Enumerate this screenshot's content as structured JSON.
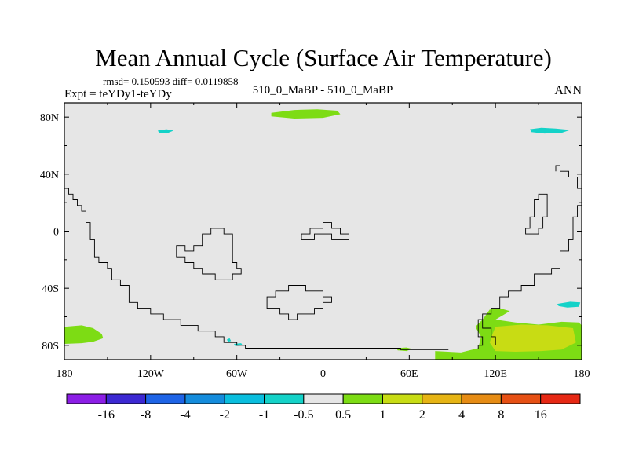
{
  "chart_data": {
    "type": "heatmap",
    "title": "Mean Annual Cycle (Surface Air Temperature)",
    "stats": "rmsd= 0.150593 diff= 0.0119858",
    "experiment": "Expt = teYDy1-teYDy",
    "subtitle": "510_0_MaBP - 510_0_MaBP",
    "season": "ANN",
    "xlim": [
      -180,
      180
    ],
    "ylim": [
      -90,
      90
    ],
    "x_ticks": [
      {
        "value": -180,
        "label": "180"
      },
      {
        "value": -120,
        "label": "120W"
      },
      {
        "value": -60,
        "label": "60W"
      },
      {
        "value": 0,
        "label": "0"
      },
      {
        "value": 60,
        "label": "60E"
      },
      {
        "value": 120,
        "label": "120E"
      },
      {
        "value": 180,
        "label": "180"
      }
    ],
    "y_ticks": [
      {
        "value": 80,
        "label": "80N"
      },
      {
        "value": 40,
        "label": "40N"
      },
      {
        "value": 0,
        "label": "0"
      },
      {
        "value": -40,
        "label": "40S"
      },
      {
        "value": -80,
        "label": "80S"
      }
    ],
    "background_class": "-0.5 to 0.5",
    "colorbar": {
      "colors": [
        "#8c1ee6",
        "#3c28d2",
        "#1e64e6",
        "#148cdc",
        "#0abede",
        "#14d2c8",
        "#e6e6e6",
        "#7ddc14",
        "#c8dc14",
        "#e6b414",
        "#e68c14",
        "#e65014",
        "#e62814"
      ],
      "labels": [
        "-16",
        "-8",
        "-4",
        "-2",
        "-1",
        "-0.5",
        "0.5",
        "1",
        "2",
        "4",
        "8",
        "16"
      ]
    },
    "regions": [
      {
        "level": "1",
        "color": "#7ddc14",
        "points": [
          [
            -36,
            83
          ],
          [
            -20,
            85
          ],
          [
            -4,
            85.5
          ],
          [
            10,
            84.5
          ],
          [
            12,
            82
          ],
          [
            0,
            79.5
          ],
          [
            -20,
            79
          ],
          [
            -36,
            80.5
          ]
        ]
      },
      {
        "level": "-1",
        "color": "#14d2c8",
        "points": [
          [
            -115,
            70.5
          ],
          [
            -109,
            71.5
          ],
          [
            -104,
            70.5
          ],
          [
            -109,
            68.5
          ],
          [
            -114,
            69
          ]
        ]
      },
      {
        "level": "-1",
        "color": "#14d2c8",
        "points": [
          [
            144,
            71.5
          ],
          [
            152,
            72.5
          ],
          [
            162,
            72
          ],
          [
            172,
            71
          ],
          [
            166,
            69
          ],
          [
            154,
            68.5
          ],
          [
            145,
            69.5
          ]
        ]
      },
      {
        "level": "-1",
        "color": "#14d2c8",
        "points": [
          [
            163,
            -51
          ],
          [
            172,
            -49.5
          ],
          [
            179,
            -50
          ],
          [
            178,
            -53
          ],
          [
            170,
            -53.5
          ],
          [
            164,
            -52.5
          ]
        ]
      },
      {
        "level": "-1",
        "color": "#14d2c8",
        "points": [
          [
            -67,
            -76
          ],
          [
            -65,
            -75
          ],
          [
            -64,
            -77
          ],
          [
            -66,
            -77.5
          ]
        ]
      },
      {
        "level": "-1",
        "color": "#14d2c8",
        "points": [
          [
            -62,
            -79
          ],
          [
            -57,
            -78.5
          ],
          [
            -56,
            -80
          ],
          [
            -61,
            -80.5
          ]
        ]
      },
      {
        "level": "1",
        "color": "#7ddc14",
        "points": [
          [
            -180,
            -67
          ],
          [
            -168,
            -66
          ],
          [
            -160,
            -68
          ],
          [
            -154,
            -72
          ],
          [
            -153,
            -75
          ],
          [
            -160,
            -77.5
          ],
          [
            -168,
            -78.5
          ],
          [
            -180,
            -79
          ]
        ]
      },
      {
        "level": "1",
        "color": "#7ddc14",
        "points": [
          [
            51,
            -82
          ],
          [
            58,
            -81.5
          ],
          [
            62,
            -82.5
          ],
          [
            58,
            -84
          ],
          [
            52,
            -83.5
          ]
        ]
      },
      {
        "level": "1",
        "color": "#7ddc14",
        "points": [
          [
            111,
            -62
          ],
          [
            116,
            -55
          ],
          [
            123,
            -54
          ],
          [
            130,
            -56
          ],
          [
            120,
            -62
          ],
          [
            134,
            -64
          ],
          [
            150,
            -65.5
          ],
          [
            166,
            -63.5
          ],
          [
            178,
            -64
          ],
          [
            180,
            -66
          ],
          [
            180,
            -90
          ],
          [
            78,
            -90
          ],
          [
            78,
            -84
          ],
          [
            96,
            -85
          ],
          [
            108,
            -82
          ],
          [
            110,
            -74
          ],
          [
            106,
            -67
          ]
        ]
      },
      {
        "level": "2",
        "color": "#c8dc14",
        "points": [
          [
            120,
            -67
          ],
          [
            138,
            -65.5
          ],
          [
            156,
            -66
          ],
          [
            174,
            -68
          ],
          [
            176,
            -78
          ],
          [
            166,
            -83
          ],
          [
            152,
            -84
          ],
          [
            134,
            -84.5
          ],
          [
            120,
            -84
          ],
          [
            116,
            -78
          ],
          [
            118,
            -72
          ]
        ]
      }
    ],
    "coastlines": [
      {
        "name": "western-margin",
        "closed": false,
        "points": [
          [
            -180,
            30
          ],
          [
            -177,
            30
          ],
          [
            -177,
            26
          ],
          [
            -174,
            26
          ],
          [
            -174,
            22
          ],
          [
            -171,
            22
          ],
          [
            -171,
            18
          ],
          [
            -168,
            18
          ],
          [
            -168,
            14
          ],
          [
            -165,
            14
          ],
          [
            -165,
            6
          ],
          [
            -162,
            6
          ],
          [
            -162,
            -6
          ],
          [
            -159,
            -6
          ],
          [
            -159,
            -18
          ],
          [
            -156,
            -18
          ],
          [
            -156,
            -22
          ],
          [
            -150,
            -22
          ],
          [
            -150,
            -26
          ],
          [
            -147,
            -26
          ],
          [
            -147,
            -34
          ],
          [
            -141,
            -34
          ],
          [
            -141,
            -38
          ],
          [
            -135,
            -38
          ],
          [
            -135,
            -50
          ],
          [
            -129,
            -50
          ],
          [
            -129,
            -54
          ],
          [
            -120,
            -54
          ],
          [
            -120,
            -58
          ],
          [
            -111,
            -58
          ],
          [
            -111,
            -62
          ],
          [
            -99,
            -62
          ],
          [
            -99,
            -66
          ],
          [
            -87,
            -66
          ],
          [
            -87,
            -70
          ],
          [
            -75,
            -70
          ],
          [
            -75,
            -74
          ],
          [
            -69,
            -74
          ],
          [
            -69,
            -78
          ],
          [
            -60,
            -78
          ],
          [
            -60,
            -80
          ],
          [
            -54,
            -80
          ],
          [
            -54,
            -82
          ],
          [
            54,
            -82
          ],
          [
            54,
            -83
          ],
          [
            87,
            -83
          ],
          [
            87,
            -82.5
          ],
          [
            108,
            -82.5
          ],
          [
            108,
            -80
          ],
          [
            111,
            -80
          ],
          [
            111,
            -74
          ],
          [
            108,
            -74
          ],
          [
            108,
            -62
          ],
          [
            111,
            -62
          ],
          [
            111,
            -58
          ],
          [
            117,
            -58
          ],
          [
            117,
            -54
          ],
          [
            123,
            -54
          ],
          [
            123,
            -46
          ],
          [
            129,
            -46
          ],
          [
            129,
            -42
          ],
          [
            138,
            -42
          ],
          [
            138,
            -38
          ],
          [
            147,
            -38
          ],
          [
            147,
            -30
          ],
          [
            159,
            -30
          ],
          [
            159,
            -26
          ],
          [
            165,
            -26
          ],
          [
            165,
            -14
          ],
          [
            171,
            -14
          ],
          [
            171,
            -6
          ],
          [
            174,
            -6
          ],
          [
            174,
            10
          ],
          [
            177,
            10
          ],
          [
            177,
            18
          ],
          [
            180,
            18
          ]
        ]
      },
      {
        "name": "southern-inner-loop",
        "closed": false,
        "points": [
          [
            111,
            -62
          ],
          [
            111,
            -68
          ],
          [
            117,
            -68
          ],
          [
            117,
            -74
          ],
          [
            120,
            -74
          ],
          [
            120,
            -80
          ]
        ]
      },
      {
        "name": "central-island",
        "closed": true,
        "points": [
          [
            -102,
            -10
          ],
          [
            -96,
            -10
          ],
          [
            -96,
            -14
          ],
          [
            -90,
            -14
          ],
          [
            -90,
            -10
          ],
          [
            -84,
            -10
          ],
          [
            -84,
            -2
          ],
          [
            -78,
            -2
          ],
          [
            -78,
            2
          ],
          [
            -69,
            2
          ],
          [
            -69,
            -2
          ],
          [
            -63,
            -2
          ],
          [
            -63,
            -22
          ],
          [
            -60,
            -22
          ],
          [
            -60,
            -26
          ],
          [
            -57,
            -26
          ],
          [
            -57,
            -30
          ],
          [
            -63,
            -30
          ],
          [
            -63,
            -34
          ],
          [
            -75,
            -34
          ],
          [
            -75,
            -30
          ],
          [
            -84,
            -30
          ],
          [
            -84,
            -26
          ],
          [
            -90,
            -26
          ],
          [
            -90,
            -22
          ],
          [
            -96,
            -22
          ],
          [
            -96,
            -18
          ],
          [
            -102,
            -18
          ]
        ]
      },
      {
        "name": "equatorial-strip",
        "closed": true,
        "points": [
          [
            -15,
            -2
          ],
          [
            -9,
            -2
          ],
          [
            -9,
            2
          ],
          [
            0,
            2
          ],
          [
            0,
            6
          ],
          [
            6,
            6
          ],
          [
            6,
            2
          ],
          [
            12,
            2
          ],
          [
            12,
            -2
          ],
          [
            18,
            -2
          ],
          [
            18,
            -6
          ],
          [
            6,
            -6
          ],
          [
            6,
            -2
          ],
          [
            -6,
            -2
          ],
          [
            -6,
            -6
          ],
          [
            -15,
            -6
          ]
        ]
      },
      {
        "name": "southern-island",
        "closed": true,
        "points": [
          [
            -39,
            -50
          ],
          [
            -39,
            -46
          ],
          [
            -33,
            -46
          ],
          [
            -33,
            -42
          ],
          [
            -24,
            -42
          ],
          [
            -24,
            -38
          ],
          [
            -12,
            -38
          ],
          [
            -12,
            -42
          ],
          [
            0,
            -42
          ],
          [
            0,
            -46
          ],
          [
            6,
            -46
          ],
          [
            6,
            -50
          ],
          [
            0,
            -50
          ],
          [
            0,
            -54
          ],
          [
            -6,
            -54
          ],
          [
            -6,
            -58
          ],
          [
            -18,
            -58
          ],
          [
            -18,
            -62
          ],
          [
            -24,
            -62
          ],
          [
            -24,
            -58
          ],
          [
            -30,
            -58
          ],
          [
            -30,
            -54
          ],
          [
            -39,
            -54
          ]
        ]
      },
      {
        "name": "eastern-peninsula",
        "closed": true,
        "points": [
          [
            141,
            -2
          ],
          [
            141,
            2
          ],
          [
            144,
            2
          ],
          [
            144,
            10
          ],
          [
            147,
            10
          ],
          [
            147,
            22
          ],
          [
            150,
            22
          ],
          [
            150,
            26
          ],
          [
            156,
            26
          ],
          [
            156,
            10
          ],
          [
            153,
            10
          ],
          [
            153,
            2
          ],
          [
            150,
            2
          ],
          [
            150,
            -2
          ]
        ]
      },
      {
        "name": "northeast-fragment",
        "closed": false,
        "points": [
          [
            180,
            30
          ],
          [
            177,
            30
          ],
          [
            177,
            38
          ],
          [
            171,
            38
          ],
          [
            171,
            42
          ],
          [
            165,
            42
          ],
          [
            165,
            46
          ],
          [
            162,
            46
          ],
          [
            162,
            42
          ]
        ]
      }
    ]
  }
}
